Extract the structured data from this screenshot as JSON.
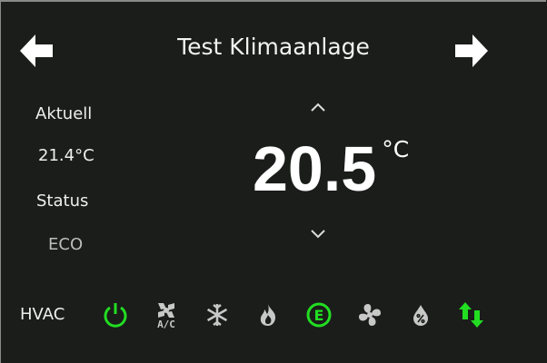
{
  "header": {
    "title": "Test Klimaanlage",
    "prev_icon": "arrow-left-icon",
    "next_icon": "arrow-right-icon"
  },
  "info": {
    "current_label": "Aktuell",
    "current_value": "21.4°C",
    "status_label": "Status",
    "status_value": "ECO"
  },
  "setpoint": {
    "value": "20.5",
    "unit": "°C",
    "increase_icon": "chevron-up-icon",
    "decrease_icon": "chevron-down-icon"
  },
  "hvac": {
    "label": "HVAC",
    "active_color": "#22dd22",
    "inactive_color": "#c8c8c8",
    "modes": [
      {
        "name": "power",
        "icon": "power-icon",
        "active": true
      },
      {
        "name": "ac",
        "icon": "ac-fan-icon",
        "text": "A/C",
        "active": false
      },
      {
        "name": "cool",
        "icon": "snowflake-icon",
        "active": false
      },
      {
        "name": "heat",
        "icon": "flame-icon",
        "active": false
      },
      {
        "name": "eco",
        "icon": "eco-icon",
        "text": "E",
        "active": true
      },
      {
        "name": "fan",
        "icon": "fan-icon",
        "active": false
      },
      {
        "name": "dry",
        "icon": "humidity-drop-icon",
        "active": false
      },
      {
        "name": "auto",
        "icon": "heat-cool-arrows-icon",
        "active": true
      }
    ]
  }
}
